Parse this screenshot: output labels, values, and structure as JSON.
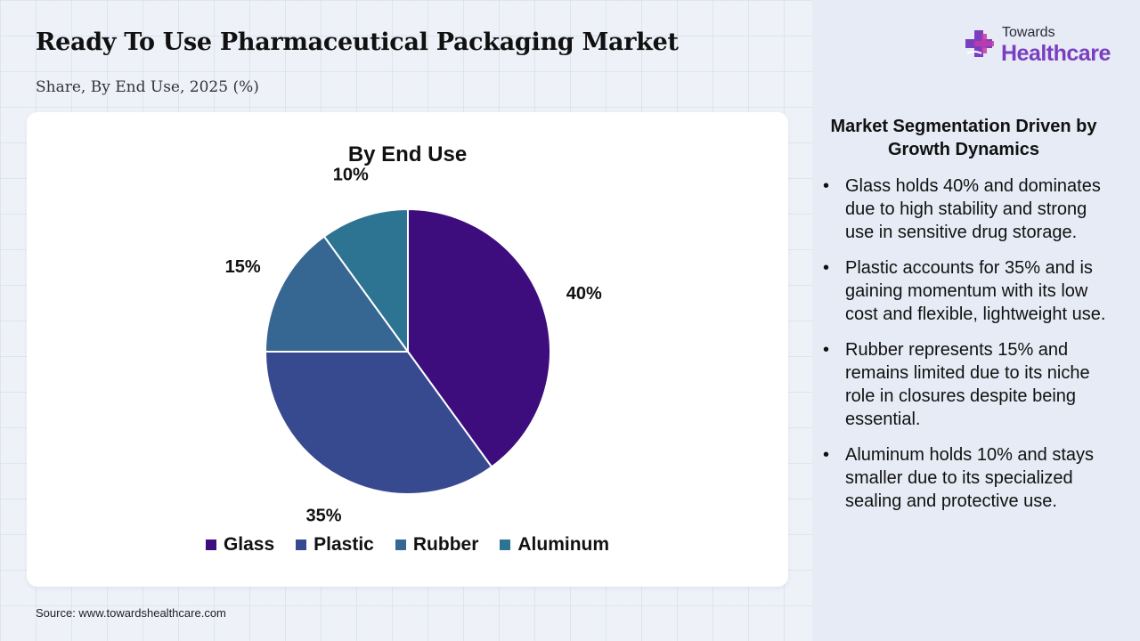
{
  "header": {
    "title": "Ready To Use Pharmaceutical Packaging Market",
    "subtitle": "Share, By End Use, 2025 (%)"
  },
  "brand": {
    "small": "Towards",
    "big": "Healthcare",
    "icon": "medical-cross-logo-icon",
    "colors": {
      "purple": "#7a3fc0",
      "magenta": "#c23ba8"
    }
  },
  "chart_data": {
    "type": "pie",
    "title": "By End Use",
    "categories": [
      "Glass",
      "Plastic",
      "Rubber",
      "Aluminum"
    ],
    "values": [
      40,
      35,
      15,
      10
    ],
    "labels": [
      "40%",
      "35%",
      "15%",
      "10%"
    ],
    "colors": [
      "#3d0d7d",
      "#384a8f",
      "#366792",
      "#2c7491"
    ],
    "legend_position": "bottom"
  },
  "panel": {
    "heading": "Market Segmentation Driven by Growth Dynamics",
    "bullets": [
      "Glass holds 40% and dominates due to high stability and strong use in sensitive drug storage.",
      "Plastic accounts for 35% and is gaining momentum with its low cost and flexible, lightweight use.",
      "Rubber represents 15% and remains limited due to its niche role in closures despite being essential.",
      "Aluminum holds 10% and stays smaller due to its specialized sealing and protective use."
    ]
  },
  "footer": {
    "source": "Source: www.towardshealthcare.com"
  }
}
